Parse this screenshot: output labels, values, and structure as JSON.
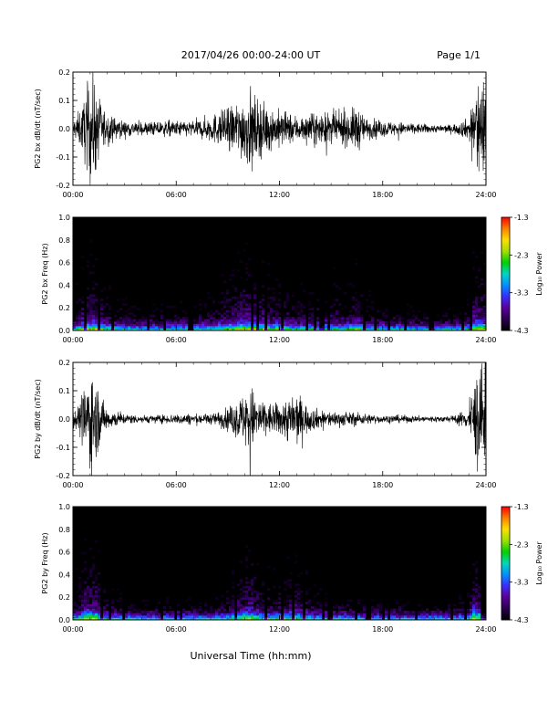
{
  "header": {
    "title": "2017/04/26  00:00-24:00 UT",
    "page": "Page 1/1"
  },
  "footer": {
    "xlabel": "Universal Time (hh:mm)"
  },
  "colors": {
    "trace": "#000000",
    "colormap": [
      "#000000",
      "#2a0050",
      "#5a0098",
      "#3a2cff",
      "#0090ff",
      "#00d8c0",
      "#00d000",
      "#a0e000",
      "#ffe000",
      "#ff8000",
      "#ff0000"
    ]
  },
  "chart_data": [
    {
      "type": "line",
      "ylabel": "PG2 bx dB/dt (nT/sec)",
      "xlim": [
        0,
        24
      ],
      "ylim": [
        -0.2,
        0.2
      ],
      "xticks": [
        "00:00",
        "06:00",
        "12:00",
        "18:00",
        "24:00"
      ],
      "yticks": [
        "-0.2",
        "-0.1",
        "0.0",
        "0.1",
        "0.2"
      ],
      "series": [
        {
          "x": [
            0,
            0.5,
            1.0,
            1.2,
            1.5,
            2.0,
            3,
            4,
            5,
            6,
            7,
            8,
            9,
            9.5,
            10,
            10.3,
            10.5,
            11,
            11.5,
            12,
            12.5,
            13,
            13.5,
            14,
            15,
            16,
            16.5,
            17,
            18,
            19,
            20,
            21,
            22,
            23,
            23.5,
            24
          ],
          "amplitude": [
            0.03,
            0.08,
            0.2,
            0.2,
            0.12,
            0.05,
            0.03,
            0.025,
            0.03,
            0.03,
            0.03,
            0.05,
            0.08,
            0.1,
            0.13,
            0.15,
            0.12,
            0.1,
            0.08,
            0.07,
            0.06,
            0.05,
            0.05,
            0.06,
            0.06,
            0.06,
            0.09,
            0.04,
            0.03,
            0.025,
            0.02,
            0.015,
            0.015,
            0.04,
            0.2,
            0.2
          ]
        }
      ]
    },
    {
      "type": "heatmap",
      "ylabel": "PG2 bx Freq (Hz)",
      "xlim": [
        0,
        24
      ],
      "ylim": [
        0,
        1
      ],
      "xticks": [
        "00:00",
        "06:00",
        "12:00",
        "18:00",
        "24:00"
      ],
      "yticks": [
        "0.0",
        "0.2",
        "0.4",
        "0.6",
        "0.8",
        "1.0"
      ],
      "colorbar": {
        "label": "Log₁₀ Power",
        "ticks": [
          "-1.3",
          "-2.3",
          "-3.3",
          "-4.3"
        ],
        "range": [
          -4.3,
          -1.3
        ]
      }
    },
    {
      "type": "line",
      "ylabel": "PG2 by dB/dt (nT/sec)",
      "xlim": [
        0,
        24
      ],
      "ylim": [
        -0.2,
        0.2
      ],
      "xticks": [
        "00:00",
        "06:00",
        "12:00",
        "18:00",
        "24:00"
      ],
      "yticks": [
        "-0.2",
        "-0.1",
        "0.0",
        "0.1",
        "0.2"
      ],
      "series": [
        {
          "x": [
            0,
            0.5,
            1.0,
            1.2,
            1.5,
            2.0,
            3,
            4,
            5,
            6,
            7,
            8,
            9,
            9.5,
            10,
            10.3,
            10.5,
            11,
            11.5,
            12,
            12.5,
            13,
            13.5,
            14,
            15,
            16,
            16.5,
            17,
            18,
            19,
            20,
            21,
            22,
            23,
            23.5,
            24
          ],
          "amplitude": [
            0.03,
            0.07,
            0.2,
            0.2,
            0.1,
            0.04,
            0.02,
            0.015,
            0.015,
            0.02,
            0.02,
            0.02,
            0.04,
            0.07,
            0.1,
            0.15,
            0.1,
            0.07,
            0.06,
            0.06,
            0.09,
            0.1,
            0.06,
            0.04,
            0.03,
            0.025,
            0.025,
            0.02,
            0.015,
            0.015,
            0.012,
            0.012,
            0.012,
            0.04,
            0.2,
            0.2
          ]
        }
      ]
    },
    {
      "type": "heatmap",
      "ylabel": "PG2 by Freq (Hz)",
      "xlim": [
        0,
        24
      ],
      "ylim": [
        0,
        1
      ],
      "xticks": [
        "00:00",
        "06:00",
        "12:00",
        "18:00",
        "24:00"
      ],
      "yticks": [
        "0.0",
        "0.2",
        "0.4",
        "0.6",
        "0.8",
        "1.0"
      ],
      "colorbar": {
        "label": "Log₁₀ Power",
        "ticks": [
          "-1.3",
          "-2.3",
          "-3.3",
          "-4.3"
        ],
        "range": [
          -4.3,
          -1.3
        ]
      }
    }
  ]
}
